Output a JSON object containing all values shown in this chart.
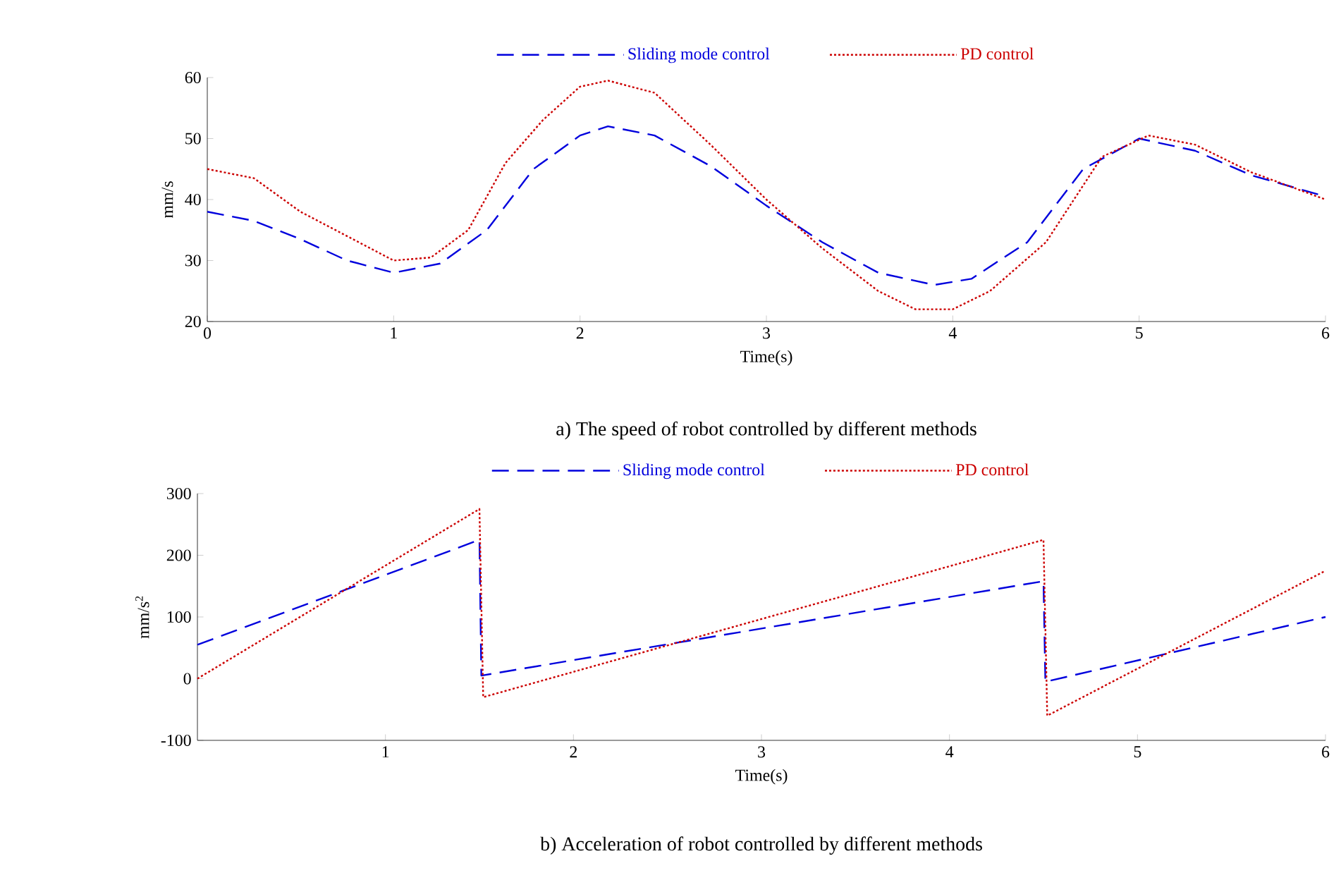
{
  "chart_data": [
    {
      "type": "line",
      "title": "a) The speed of robot controlled by different methods",
      "xlabel": "Time(s)",
      "ylabel": "mm/s",
      "xlim": [
        0,
        6
      ],
      "ylim": [
        20,
        60
      ],
      "xticks": [
        0,
        1,
        2,
        3,
        4,
        5,
        6
      ],
      "yticks": [
        20,
        30,
        40,
        50,
        60
      ],
      "legend": "top",
      "marker": "none",
      "series": [
        {
          "name": "Sliding mode control",
          "color": "#0000dd",
          "line_style": "dashed",
          "x": [
            0,
            0.25,
            0.5,
            0.75,
            1.0,
            1.25,
            1.5,
            1.75,
            2.0,
            2.15,
            2.4,
            2.7,
            3.0,
            3.3,
            3.6,
            3.9,
            4.1,
            4.4,
            4.7,
            5.0,
            5.3,
            5.6,
            6.0
          ],
          "values": [
            38,
            36.5,
            33.5,
            30,
            28,
            29.5,
            35,
            45,
            50.5,
            52,
            50.5,
            45.5,
            39,
            33,
            28,
            26,
            27,
            33,
            45,
            50,
            48,
            44,
            40.5
          ]
        },
        {
          "name": "PD control",
          "color": "#cc0000",
          "line_style": "dotted",
          "x": [
            0,
            0.25,
            0.5,
            0.75,
            1.0,
            1.2,
            1.4,
            1.6,
            1.8,
            2.0,
            2.15,
            2.4,
            2.7,
            3.0,
            3.3,
            3.6,
            3.8,
            4.0,
            4.2,
            4.5,
            4.8,
            5.05,
            5.3,
            5.6,
            6.0
          ],
          "values": [
            45,
            43.5,
            38,
            34,
            30,
            30.5,
            35,
            46,
            53,
            58.5,
            59.5,
            57.5,
            49,
            40,
            32,
            25,
            22,
            22,
            25,
            33,
            47,
            50.5,
            49,
            44.5,
            40
          ]
        }
      ]
    },
    {
      "type": "line",
      "title": "b) Acceleration of robot controlled by different methods",
      "xlabel": "Time(s)",
      "ylabel": "mm/s$^{2}$",
      "xlim": [
        0,
        6
      ],
      "ylim": [
        -100,
        300
      ],
      "xticks": [
        1,
        2,
        3,
        4,
        5,
        6
      ],
      "yticks": [
        -100,
        0,
        100,
        200,
        300
      ],
      "legend": "top",
      "marker": "none",
      "series": [
        {
          "name": "Sliding mode control",
          "color": "#0000dd",
          "line_style": "dashed",
          "x": [
            0,
            1.5,
            1.51,
            4.5,
            4.51,
            6
          ],
          "values": [
            55,
            225,
            5,
            158,
            -5,
            100
          ]
        },
        {
          "name": "PD control",
          "color": "#cc0000",
          "line_style": "dotted",
          "x": [
            0,
            1.5,
            1.52,
            4.5,
            4.52,
            6
          ],
          "values": [
            0,
            275,
            -30,
            225,
            -60,
            175
          ]
        }
      ]
    }
  ]
}
